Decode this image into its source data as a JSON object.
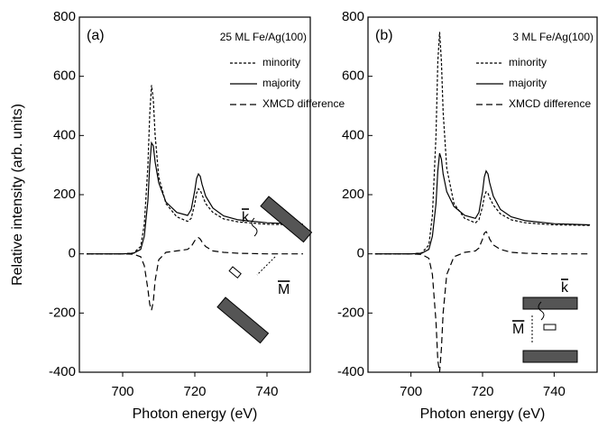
{
  "chart_data": [
    {
      "type": "line",
      "panel_label": "(a)",
      "title": "25 ML Fe/Ag(100)",
      "xlabel": "Photon energy (eV)",
      "ylabel": "Relative intensity (arb. units)",
      "xlim": [
        688,
        752
      ],
      "xticks": [
        700,
        720,
        740
      ],
      "ylim": [
        -400,
        800
      ],
      "yticks": [
        -400,
        -200,
        0,
        200,
        400,
        600,
        800
      ],
      "x": [
        690,
        700,
        703,
        705,
        706,
        707,
        707.5,
        708,
        708.5,
        709,
        710,
        712,
        715,
        718,
        719,
        720,
        720.5,
        721,
        721.5,
        722,
        723,
        725,
        728,
        732,
        740,
        750
      ],
      "series": [
        {
          "name": "minority",
          "color": "#000000",
          "dash": "3,2",
          "values": [
            0,
            0,
            3,
            25,
            100,
            300,
            470,
            570,
            520,
            400,
            260,
            170,
            125,
            110,
            120,
            170,
            205,
            220,
            215,
            200,
            170,
            140,
            118,
            108,
            100,
            98
          ]
        },
        {
          "name": "majority",
          "color": "#000000",
          "dash": "none",
          "values": [
            0,
            0,
            2,
            15,
            60,
            180,
            300,
            375,
            365,
            310,
            240,
            175,
            140,
            130,
            150,
            215,
            255,
            270,
            262,
            235,
            195,
            155,
            128,
            115,
            105,
            100
          ]
        },
        {
          "name": "XMCD difference",
          "color": "#000000",
          "dash": "7,4",
          "values": [
            0,
            0,
            -1,
            -10,
            -40,
            -120,
            -170,
            -190,
            -160,
            -90,
            -20,
            5,
            10,
            15,
            25,
            45,
            50,
            55,
            50,
            40,
            25,
            10,
            5,
            2,
            0,
            0
          ]
        }
      ],
      "inset_labels": [
        "k",
        "M"
      ]
    },
    {
      "type": "line",
      "panel_label": "(b)",
      "title": "3 ML Fe/Ag(100)",
      "xlabel": "Photon energy (eV)",
      "xlim": [
        688,
        752
      ],
      "xticks": [
        700,
        720,
        740
      ],
      "ylim": [
        -400,
        800
      ],
      "yticks": [
        -400,
        -200,
        0,
        200,
        400,
        600,
        800
      ],
      "x": [
        690,
        700,
        703,
        705,
        706,
        707,
        707.5,
        708,
        708.5,
        709,
        710,
        712,
        715,
        718,
        719,
        720,
        720.5,
        721,
        721.5,
        722,
        723,
        725,
        728,
        732,
        740,
        750
      ],
      "series": [
        {
          "name": "minority",
          "color": "#000000",
          "dash": "3,2",
          "values": [
            0,
            0,
            3,
            30,
            130,
            400,
            650,
            750,
            650,
            480,
            290,
            170,
            120,
            105,
            115,
            160,
            195,
            210,
            205,
            190,
            165,
            135,
            115,
            105,
            98,
            96
          ]
        },
        {
          "name": "majority",
          "color": "#000000",
          "dash": "none",
          "values": [
            0,
            0,
            2,
            15,
            60,
            170,
            280,
            340,
            320,
            270,
            210,
            160,
            130,
            120,
            140,
            210,
            260,
            280,
            270,
            240,
            195,
            150,
            125,
            112,
            102,
            98
          ]
        },
        {
          "name": "XMCD difference",
          "color": "#000000",
          "dash": "7,4",
          "values": [
            0,
            0,
            -2,
            -15,
            -70,
            -230,
            -360,
            -400,
            -320,
            -200,
            -70,
            -10,
            5,
            10,
            20,
            50,
            70,
            75,
            65,
            50,
            30,
            15,
            5,
            2,
            0,
            0
          ]
        }
      ],
      "inset_labels": [
        "k",
        "M"
      ]
    }
  ]
}
